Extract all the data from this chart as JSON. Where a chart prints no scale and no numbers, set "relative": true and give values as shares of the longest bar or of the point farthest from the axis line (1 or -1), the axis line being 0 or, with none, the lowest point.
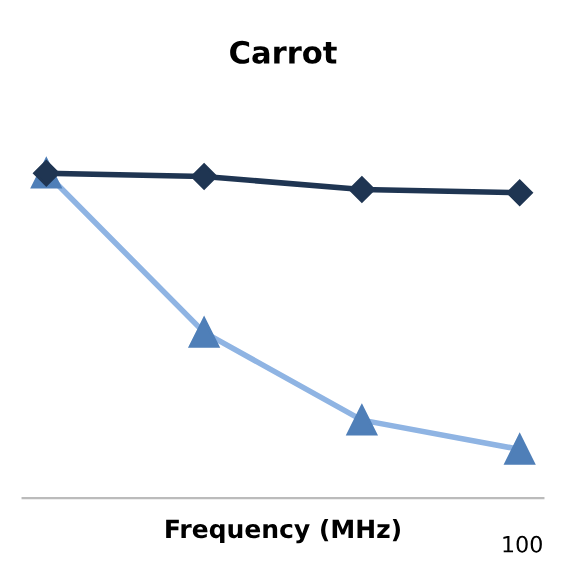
{
  "chart_data": {
    "type": "line",
    "title": "Carrot",
    "xlabel": "Frequency (MHz)",
    "relative": true,
    "categories": [
      null,
      null,
      null,
      null
    ],
    "series": [
      {
        "color": "#1f3552",
        "marker": "diamond",
        "values": [
          1,
          0.99,
          0.95,
          0.94
        ]
      },
      {
        "color": "#8fb4e3",
        "marker": "triangle",
        "values": [
          1,
          0.51,
          0.24,
          0.15
        ]
      }
    ],
    "annotations": [
      "100"
    ],
    "grid": false,
    "legend": false
  }
}
